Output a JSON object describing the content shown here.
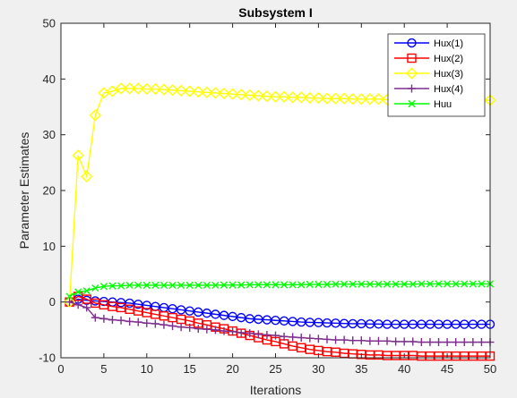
{
  "chart_data": {
    "type": "line",
    "title": "Subsystem I",
    "xlabel": "Iterations",
    "ylabel": "Parameter Estimates",
    "xlim": [
      0,
      50
    ],
    "ylim": [
      -10,
      50
    ],
    "xticks": [
      0,
      5,
      10,
      15,
      20,
      25,
      30,
      35,
      40,
      45,
      50
    ],
    "yticks": [
      -10,
      0,
      10,
      20,
      30,
      40,
      50
    ],
    "grid": false,
    "legend_position": "top-right",
    "x": [
      1,
      2,
      3,
      4,
      5,
      6,
      7,
      8,
      9,
      10,
      11,
      12,
      13,
      14,
      15,
      16,
      17,
      18,
      19,
      20,
      21,
      22,
      23,
      24,
      25,
      26,
      27,
      28,
      29,
      30,
      31,
      32,
      33,
      34,
      35,
      36,
      37,
      38,
      39,
      40,
      41,
      42,
      43,
      44,
      45,
      46,
      47,
      48,
      49,
      50
    ],
    "series": [
      {
        "name": "Hux(1)",
        "color": "#0000ff",
        "marker": "circle",
        "values": [
          0,
          0.5,
          0.3,
          0.2,
          0.1,
          0,
          -0.1,
          -0.2,
          -0.4,
          -0.6,
          -0.8,
          -1.0,
          -1.2,
          -1.4,
          -1.6,
          -1.8,
          -2.0,
          -2.2,
          -2.4,
          -2.6,
          -2.8,
          -3.0,
          -3.1,
          -3.2,
          -3.3,
          -3.4,
          -3.5,
          -3.6,
          -3.65,
          -3.7,
          -3.75,
          -3.8,
          -3.85,
          -3.9,
          -3.9,
          -3.95,
          -3.95,
          -4.0,
          -4.0,
          -4.0,
          -4.0,
          -4.0,
          -4.0,
          -4.0,
          -4.0,
          -4.0,
          -4.0,
          -4.0,
          -4.0,
          -4.0
        ]
      },
      {
        "name": "Hux(2)",
        "color": "#ff0000",
        "marker": "square",
        "values": [
          0,
          1.0,
          0.5,
          -0.2,
          -0.5,
          -0.8,
          -1.0,
          -1.3,
          -1.6,
          -1.9,
          -2.2,
          -2.5,
          -2.8,
          -3.1,
          -3.4,
          -3.8,
          -4.1,
          -4.5,
          -4.8,
          -5.2,
          -5.6,
          -6.0,
          -6.4,
          -6.8,
          -7.1,
          -7.5,
          -7.9,
          -8.2,
          -8.5,
          -8.7,
          -8.9,
          -9.0,
          -9.2,
          -9.3,
          -9.4,
          -9.5,
          -9.5,
          -9.6,
          -9.6,
          -9.6,
          -9.6,
          -9.7,
          -9.7,
          -9.7,
          -9.7,
          -9.7,
          -9.7,
          -9.7,
          -9.7,
          -9.7
        ]
      },
      {
        "name": "Hux(3)",
        "color": "#ffff00",
        "marker": "diamond",
        "values": [
          0,
          26.3,
          22.5,
          33.5,
          37.5,
          37.8,
          38.3,
          38.3,
          38.3,
          38.2,
          38.2,
          38.1,
          38.0,
          37.9,
          37.8,
          37.7,
          37.6,
          37.5,
          37.4,
          37.3,
          37.2,
          37.1,
          37.0,
          36.9,
          36.8,
          36.8,
          36.7,
          36.7,
          36.6,
          36.6,
          36.5,
          36.5,
          36.5,
          36.4,
          36.4,
          36.4,
          36.4,
          36.3,
          36.3,
          36.3,
          36.3,
          36.3,
          36.2,
          36.2,
          36.2,
          36.2,
          36.2,
          36.2,
          36.2,
          36.2
        ]
      },
      {
        "name": "Hux(4)",
        "color": "#7e2f8e",
        "marker": "plus",
        "values": [
          0,
          -0.5,
          -1.0,
          -2.8,
          -3.0,
          -3.2,
          -3.3,
          -3.5,
          -3.6,
          -3.8,
          -3.9,
          -4.1,
          -4.3,
          -4.5,
          -4.6,
          -4.8,
          -4.9,
          -5.0,
          -5.2,
          -5.3,
          -5.5,
          -5.6,
          -5.8,
          -5.9,
          -6.0,
          -6.2,
          -6.3,
          -6.4,
          -6.5,
          -6.6,
          -6.7,
          -6.8,
          -6.8,
          -6.9,
          -6.9,
          -7.0,
          -7.0,
          -7.0,
          -7.1,
          -7.1,
          -7.1,
          -7.2,
          -7.2,
          -7.2,
          -7.2,
          -7.2,
          -7.2,
          -7.2,
          -7.2,
          -7.2
        ]
      },
      {
        "name": "Huu",
        "color": "#00ff00",
        "marker": "x",
        "values": [
          1.0,
          1.8,
          2.0,
          2.5,
          2.8,
          2.9,
          2.9,
          3.0,
          3.0,
          3.0,
          3.0,
          3.0,
          3.0,
          3.0,
          3.0,
          3.0,
          3.0,
          3.0,
          3.05,
          3.05,
          3.05,
          3.1,
          3.1,
          3.1,
          3.1,
          3.1,
          3.1,
          3.1,
          3.15,
          3.15,
          3.15,
          3.2,
          3.2,
          3.2,
          3.2,
          3.2,
          3.2,
          3.2,
          3.2,
          3.2,
          3.2,
          3.25,
          3.25,
          3.25,
          3.25,
          3.25,
          3.25,
          3.25,
          3.25,
          3.25
        ]
      }
    ]
  }
}
